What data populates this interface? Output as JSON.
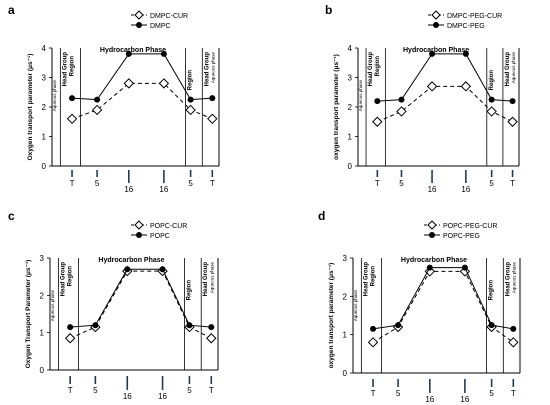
{
  "chart_data": [
    {
      "type": "line",
      "panel": "a",
      "ylabel": "Oxygen transport parameter (μs⁻¹)",
      "ylim": [
        0,
        4
      ],
      "yticks": [
        "0",
        "1",
        "2",
        "3",
        "4"
      ],
      "categories": [
        "T",
        "5",
        "16",
        "16",
        "5",
        "T"
      ],
      "top_label": "Hydrocarbon Phase",
      "head_group_label": "Head Group",
      "region_label": "Region",
      "aqueous_label": "Aqueous phase",
      "series": [
        {
          "name": "DMPC-CUR",
          "marker": "diamond",
          "dash": true,
          "values": [
            1.6,
            1.9,
            2.8,
            2.8,
            1.9,
            1.6
          ]
        },
        {
          "name": "DMPC",
          "marker": "circle",
          "dash": false,
          "values": [
            2.3,
            2.25,
            3.8,
            3.8,
            2.25,
            2.3
          ]
        }
      ]
    },
    {
      "type": "line",
      "panel": "b",
      "ylabel": "oxygen transport parameter (μs⁻¹)",
      "ylim": [
        0,
        4
      ],
      "yticks": [
        "0",
        "1",
        "2",
        "3",
        "4"
      ],
      "categories": [
        "T",
        "5",
        "16",
        "16",
        "5",
        "T"
      ],
      "top_label": "Hydrocarbon Phase",
      "head_group_label": "Head Group",
      "region_label": "Region",
      "aqueous_label": "Aqueous phase",
      "series": [
        {
          "name": "DMPC-PEG-CUR",
          "marker": "diamond",
          "dash": true,
          "values": [
            1.5,
            1.85,
            2.7,
            2.7,
            1.85,
            1.5
          ]
        },
        {
          "name": "DMPC-PEG",
          "marker": "circle",
          "dash": false,
          "values": [
            2.2,
            2.25,
            3.8,
            3.8,
            2.25,
            2.2
          ]
        }
      ]
    },
    {
      "type": "line",
      "panel": "c",
      "ylabel": "Oxygen Transport Parameter (μs⁻¹)",
      "ylim": [
        0,
        3
      ],
      "yticks": [
        "0",
        "1",
        "2",
        "3"
      ],
      "categories": [
        "T",
        "5",
        "16",
        "16",
        "5",
        "T"
      ],
      "top_label": "Hydrocarbon Phase",
      "head_group_label": "Head Group",
      "region_label": "Region",
      "aqueous_label": "Aqueous phase",
      "series": [
        {
          "name": "POPC-CUR",
          "marker": "diamond",
          "dash": true,
          "values": [
            0.85,
            1.15,
            2.65,
            2.65,
            1.15,
            0.85
          ]
        },
        {
          "name": "POPC",
          "marker": "circle",
          "dash": false,
          "values": [
            1.15,
            1.2,
            2.7,
            2.7,
            1.2,
            1.15
          ]
        }
      ]
    },
    {
      "type": "line",
      "panel": "d",
      "ylabel": "oxygen transport parameter (μs⁻¹)",
      "ylim": [
        0,
        3
      ],
      "yticks": [
        "0",
        "1",
        "2",
        "3"
      ],
      "categories": [
        "T",
        "5",
        "16",
        "16",
        "5",
        "T"
      ],
      "top_label": "Hydrocarbon Phase",
      "head_group_label": "Head Group",
      "region_label": "Region",
      "aqueous_label": "Aqueous phase",
      "series": [
        {
          "name": "POPC-PEG-CUR",
          "marker": "diamond",
          "dash": true,
          "values": [
            0.8,
            1.2,
            2.65,
            2.65,
            1.2,
            0.8
          ]
        },
        {
          "name": "POPC-PEG",
          "marker": "circle",
          "dash": false,
          "values": [
            1.15,
            1.25,
            2.75,
            2.75,
            1.25,
            1.15
          ]
        }
      ]
    }
  ]
}
